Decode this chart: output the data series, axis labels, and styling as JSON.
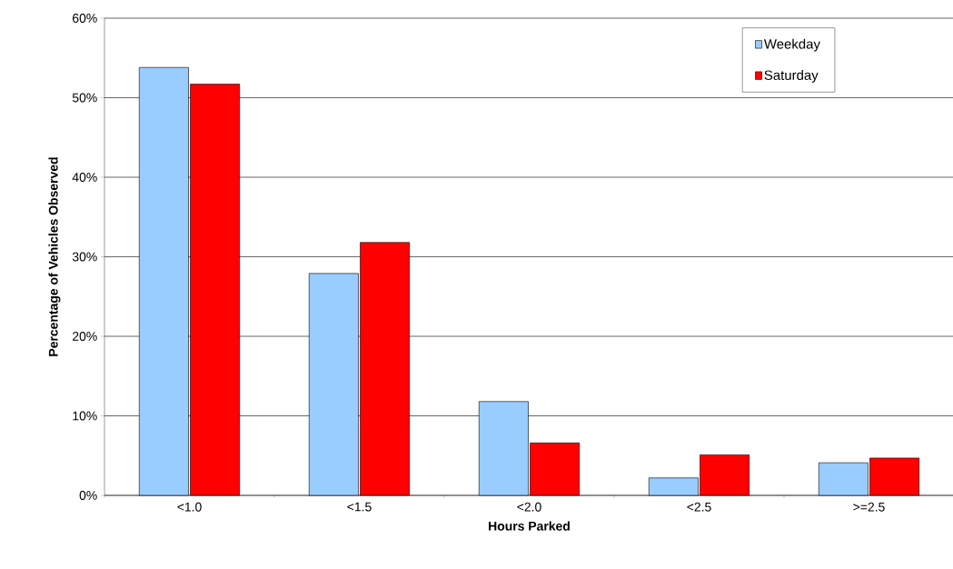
{
  "chart_data": {
    "type": "bar",
    "xlabel": "Hours Parked",
    "ylabel": "Percentage of Vehicles Observed",
    "categories": [
      "<1.0",
      "<1.5",
      "<2.0",
      "<2.5",
      ">=2.5"
    ],
    "series": [
      {
        "name": "Weekday",
        "color": "#99ccff",
        "values": [
          53.8,
          27.9,
          11.8,
          2.2,
          4.1
        ]
      },
      {
        "name": "Saturday",
        "color": "#ff0000",
        "values": [
          51.7,
          31.8,
          6.6,
          5.1,
          4.7
        ]
      }
    ],
    "ylim": [
      0,
      60
    ],
    "yticks": [
      {
        "value": 0,
        "label": "0%"
      },
      {
        "value": 10,
        "label": "10%"
      },
      {
        "value": 20,
        "label": "20%"
      },
      {
        "value": 30,
        "label": "30%"
      },
      {
        "value": 40,
        "label": "40%"
      },
      {
        "value": 50,
        "label": "50%"
      },
      {
        "value": 60,
        "label": "60%"
      }
    ],
    "grid": "y",
    "legend": "top right"
  }
}
